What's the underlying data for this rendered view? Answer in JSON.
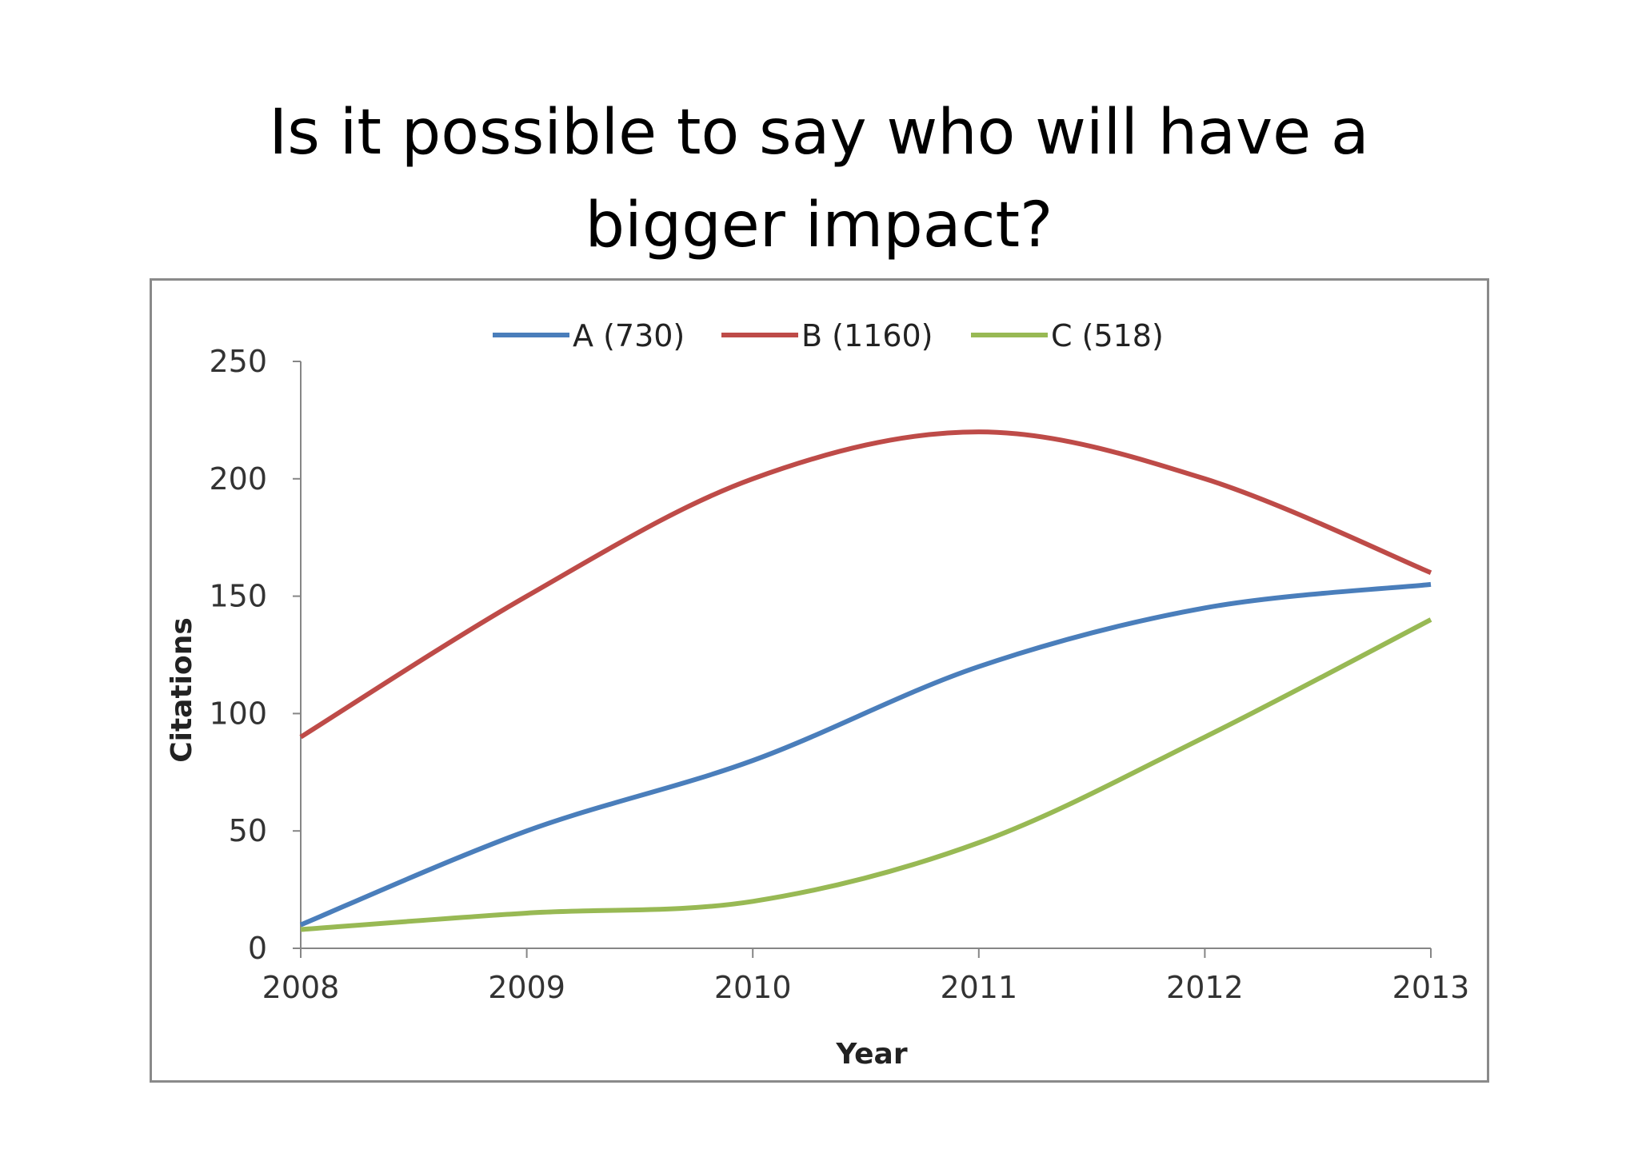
{
  "slide": {
    "title_line1": "Is it possible to say who will have a",
    "title_line2": "bigger impact?"
  },
  "chart_data": {
    "type": "line",
    "title": "",
    "xlabel": "Year",
    "ylabel": "Citations",
    "x": [
      2008,
      2009,
      2010,
      2011,
      2012,
      2013
    ],
    "x_tick_labels": [
      "2008",
      "2009",
      "2010",
      "2011",
      "2012",
      "2013"
    ],
    "y_tick_labels": [
      "0",
      "50",
      "100",
      "150",
      "200",
      "250"
    ],
    "y_ticks": [
      0,
      50,
      100,
      150,
      200,
      250
    ],
    "ylim": [
      0,
      250
    ],
    "grid": false,
    "legend_position": "top",
    "smooth": true,
    "series": [
      {
        "name": "A (730)",
        "color": "#4a7ebb",
        "values": [
          10,
          50,
          80,
          120,
          145,
          155
        ]
      },
      {
        "name": "B (1160)",
        "color": "#be4b48",
        "values": [
          90,
          150,
          200,
          220,
          200,
          160
        ]
      },
      {
        "name": "C (518)",
        "color": "#98b954",
        "values": [
          8,
          15,
          20,
          45,
          90,
          140
        ]
      }
    ]
  }
}
